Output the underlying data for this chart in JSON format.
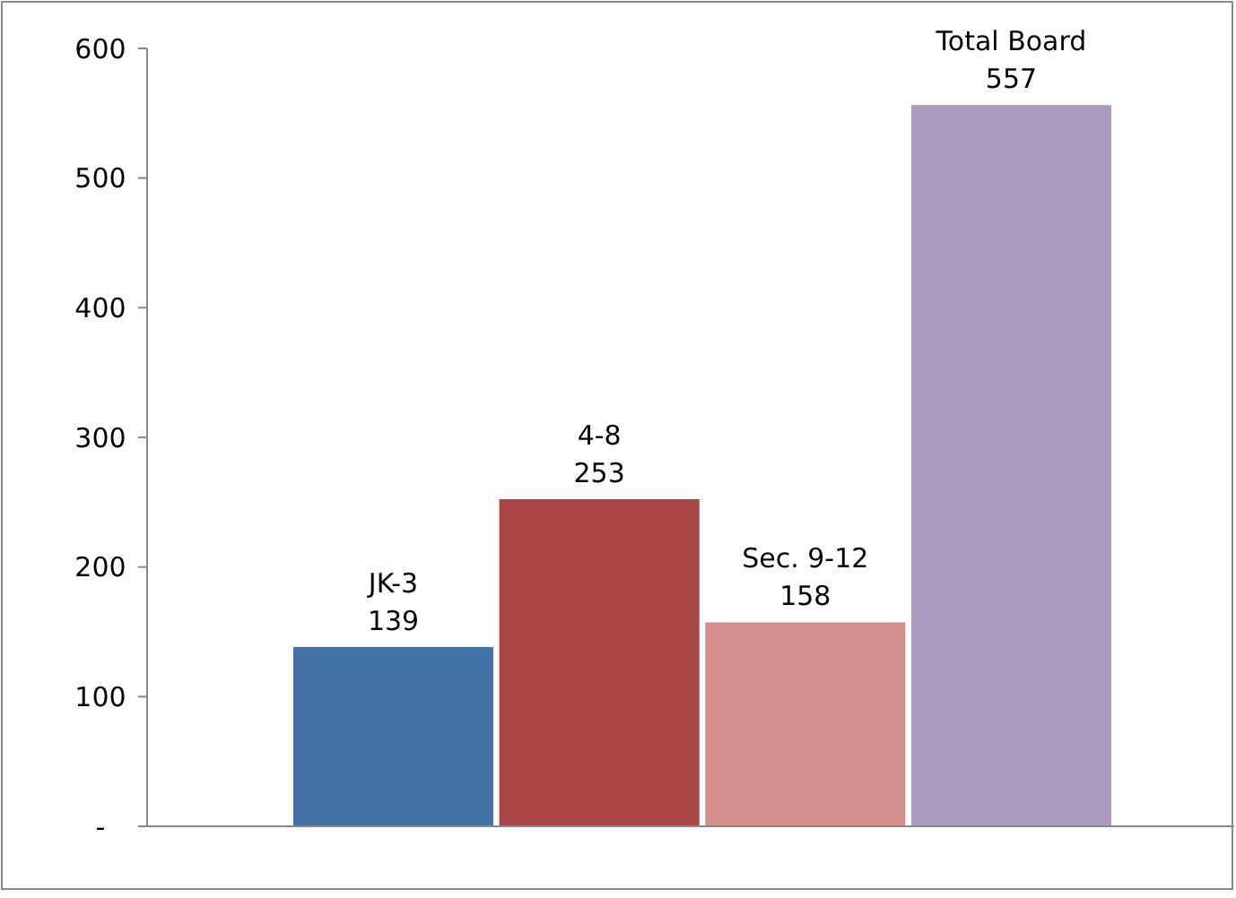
{
  "chart_data": {
    "type": "bar",
    "categories": [
      "JK-3",
      "4-8",
      "Sec. 9-12",
      "Total Board"
    ],
    "values": [
      139,
      253,
      158,
      557
    ],
    "colors": [
      "#4572a7",
      "#aa4643",
      "#d38f8e",
      "#a99bbd"
    ],
    "ylim": [
      0,
      600
    ],
    "yticks": [
      {
        "value": 0,
        "label": "-"
      },
      100,
      200,
      300,
      400,
      500,
      600
    ],
    "data_labels": true,
    "grid": false
  }
}
